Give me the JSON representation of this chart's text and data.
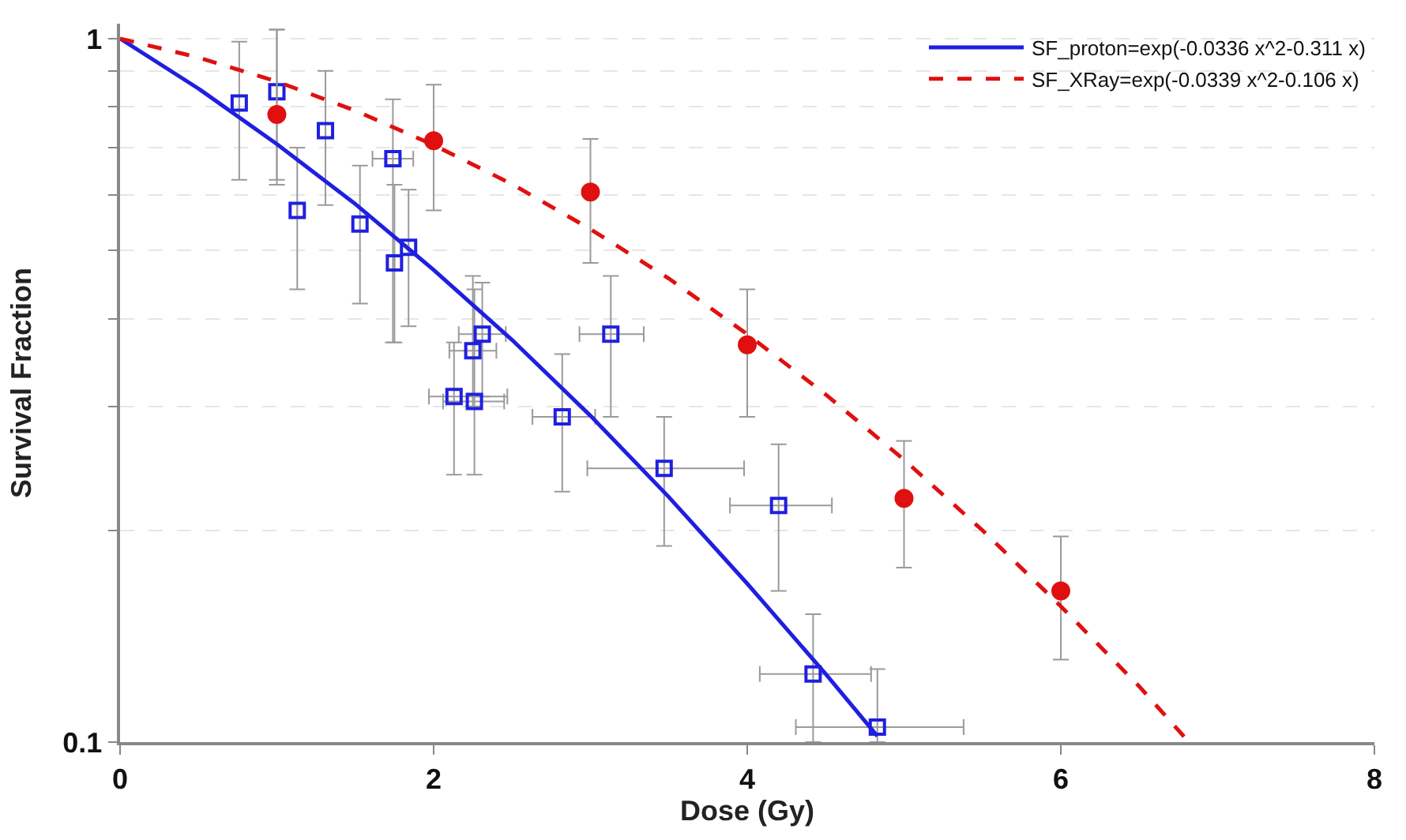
{
  "chart_data": {
    "type": "scatter",
    "xlabel": "Dose (Gy)",
    "ylabel": "Survival Fraction",
    "log": "y",
    "grid": "y",
    "legend": "top right",
    "xlim": [
      0,
      8
    ],
    "xticks": [
      0,
      2,
      4,
      6,
      8
    ],
    "ylim": [
      0.1,
      1.05
    ],
    "yticks": [
      0.1,
      {
        "value": 0.2,
        "label": null
      },
      {
        "value": 0.3,
        "label": null
      },
      {
        "value": 0.4,
        "label": null
      },
      {
        "value": 0.5,
        "label": null
      },
      {
        "value": 0.6,
        "label": null
      },
      {
        "value": 0.7,
        "label": null
      },
      {
        "value": 0.8,
        "label": null
      },
      {
        "value": 0.9,
        "label": null
      },
      1
    ],
    "series": [
      {
        "marker": "square",
        "color": "#1f1fe0",
        "x": [
          0.76,
          1.0,
          1.13,
          1.31,
          1.53,
          1.74,
          1.75,
          1.84,
          2.13,
          2.25,
          2.26,
          2.31,
          2.82,
          3.13,
          3.47,
          4.2,
          4.42,
          4.83
        ],
        "values": [
          0.81,
          0.84,
          0.57,
          0.74,
          0.545,
          0.675,
          0.48,
          0.505,
          0.31,
          0.36,
          0.305,
          0.38,
          0.29,
          0.38,
          0.245,
          0.217,
          0.125,
          0.105
        ],
        "errors": [
          [
            0.63,
            0.99
          ],
          [
            0.62,
            1.03
          ],
          [
            0.44,
            0.7
          ],
          [
            0.58,
            0.9
          ],
          [
            0.42,
            0.66
          ],
          [
            0.37,
            0.82
          ],
          [
            0.37,
            0.62
          ],
          [
            0.39,
            0.61
          ],
          [
            0.24,
            0.37
          ],
          [
            0.3,
            0.46
          ],
          [
            0.24,
            0.44
          ],
          [
            0.31,
            0.45
          ],
          [
            0.227,
            0.356
          ],
          [
            0.29,
            0.46
          ],
          [
            0.19,
            0.29
          ],
          [
            0.164,
            0.265
          ],
          [
            0.1,
            0.152
          ],
          [
            0.1,
            0.127
          ]
        ],
        "xerrors": [
          null,
          null,
          null,
          null,
          null,
          [
            1.61,
            1.87
          ],
          null,
          null,
          [
            1.97,
            2.47
          ],
          [
            2.1,
            2.4
          ],
          [
            2.06,
            2.45
          ],
          [
            2.16,
            2.46
          ],
          [
            2.63,
            3.03
          ],
          [
            2.93,
            3.34
          ],
          [
            2.98,
            3.98
          ],
          [
            3.89,
            4.54
          ],
          [
            4.08,
            4.79
          ],
          [
            4.31,
            5.38
          ]
        ]
      },
      {
        "marker": "circle",
        "color": "#e01010",
        "x": [
          1,
          2,
          3,
          4,
          5,
          6
        ],
        "values": [
          0.78,
          0.716,
          0.605,
          0.367,
          0.222,
          0.164
        ],
        "errors": [
          [
            0.63,
            1.03
          ],
          [
            0.57,
            0.86
          ],
          [
            0.48,
            0.72
          ],
          [
            0.29,
            0.44
          ],
          [
            0.177,
            0.268
          ],
          [
            0.131,
            0.196
          ]
        ]
      },
      {
        "type": "line",
        "name": "SF_proton=exp(-0.0336 x^2-0.311 x)",
        "color": "#1f1fe0",
        "line_style": "solid",
        "x": [
          0,
          0.5,
          1,
          1.5,
          2,
          2.5,
          3,
          3.5,
          4,
          4.5,
          4.83
        ],
        "values": [
          1,
          0.849,
          0.708,
          0.582,
          0.469,
          0.373,
          0.291,
          0.223,
          0.168,
          0.125,
          0.102
        ]
      },
      {
        "type": "line",
        "name": "SF_XRay=exp(-0.0339 x^2-0.106 x)",
        "color": "#e01010",
        "line_style": "dashed",
        "x": [
          0,
          0.5,
          1,
          1.5,
          2,
          2.5,
          3,
          3.5,
          4,
          4.5,
          5,
          5.5,
          6,
          6.5,
          6.8
        ],
        "values": [
          1,
          0.94,
          0.869,
          0.79,
          0.706,
          0.621,
          0.536,
          0.456,
          0.38,
          0.312,
          0.252,
          0.2,
          0.156,
          0.12,
          0.101
        ]
      }
    ]
  }
}
